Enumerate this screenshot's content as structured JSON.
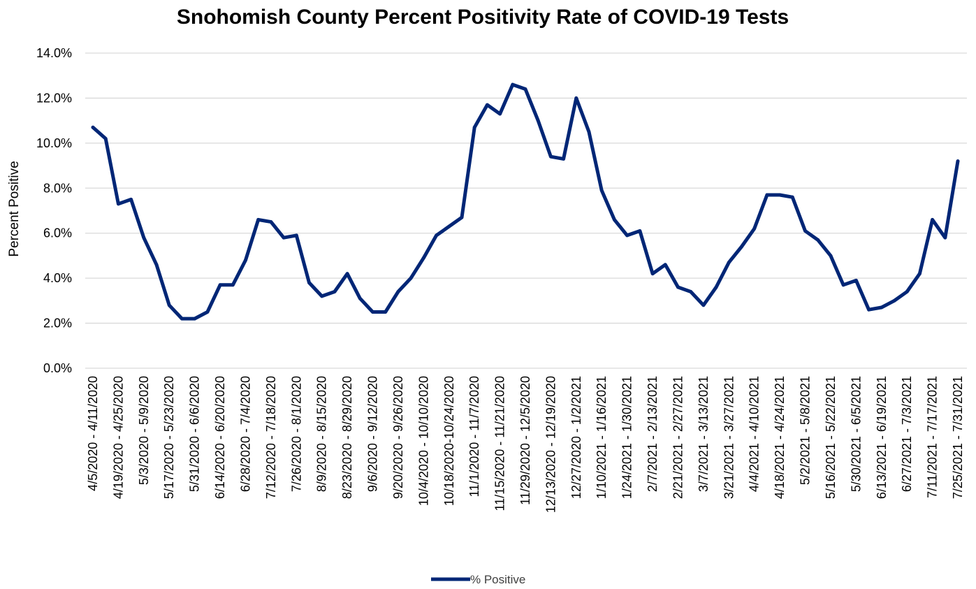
{
  "chart_data": {
    "type": "line",
    "title": "Snohomish County Percent Positivity Rate of COVID-19 Tests",
    "ylabel": "Percent Positive",
    "xlabel": "",
    "ylim": [
      0,
      0.14
    ],
    "yticks": [
      "0.0%",
      "2.0%",
      "4.0%",
      "6.0%",
      "8.0%",
      "10.0%",
      "12.0%",
      "14.0%"
    ],
    "grid": true,
    "legend_position": "bottom",
    "line_color": "#002676",
    "x_tick_labels": [
      "4/5/2020 - 4/11/2020",
      "4/19/2020 - 4/25/2020",
      "5/3/2020 - 5/9/2020",
      "5/17/2020 - 5/23/2020",
      "5/31/2020 - 6/6/2020",
      "6/14/2020 - 6/20/2020",
      "6/28/2020 - 7/4/2020",
      "7/12/2020 - 7/18/2020",
      "7/26/2020 - 8/1/2020",
      "8/9/2020 - 8/15/2020",
      "8/23/2020 - 8/29/2020",
      "9/6/2020 - 9/12/2020",
      "9/20/2020 - 9/26/2020",
      "10/4/2020 - 10/10/2020",
      "10/18/2020-10/24/2020",
      "11/1/2020 - 11/7/2020",
      "11/15/2020 - 11/21/2020",
      "11/29/2020 - 12/5/2020",
      "12/13/2020 - 12/19/2020",
      "12/27/2020 - 1/2/2021",
      "1/10/2021 - 1/16/2021",
      "1/24/2021 - 1/30/2021",
      "2/7/2021 - 2/13/2021",
      "2/21/2021 - 2/27/2021",
      "3/7/2021 - 3/13/2021",
      "3/21/2021 - 3/27/2021",
      "4/4/2021 - 4/10/2021",
      "4/18/2021 - 4/24/2021",
      "5/2/2021 - 5/8/2021",
      "5/16/2021 - 5/22/2021",
      "5/30/2021 - 6/5/2021",
      "6/13/2021 - 6/19/2021",
      "6/27/2021 - 7/3/2021",
      "7/11/2021 - 7/17/2021",
      "7/25/2021 - 7/31/2021"
    ],
    "series": [
      {
        "name": "% Positive",
        "values": [
          0.107,
          0.102,
          0.073,
          0.075,
          0.058,
          0.046,
          0.028,
          0.022,
          0.022,
          0.025,
          0.037,
          0.037,
          0.048,
          0.066,
          0.065,
          0.058,
          0.059,
          0.038,
          0.032,
          0.034,
          0.042,
          0.031,
          0.025,
          0.025,
          0.034,
          0.04,
          0.049,
          0.059,
          0.063,
          0.067,
          0.107,
          0.117,
          0.113,
          0.126,
          0.124,
          0.11,
          0.094,
          0.093,
          0.12,
          0.105,
          0.079,
          0.066,
          0.059,
          0.061,
          0.042,
          0.046,
          0.036,
          0.034,
          0.028,
          0.036,
          0.047,
          0.054,
          0.062,
          0.077,
          0.077,
          0.076,
          0.061,
          0.057,
          0.05,
          0.037,
          0.039,
          0.026,
          0.027,
          0.03,
          0.034,
          0.042,
          0.066,
          0.058,
          0.092
        ]
      }
    ]
  }
}
